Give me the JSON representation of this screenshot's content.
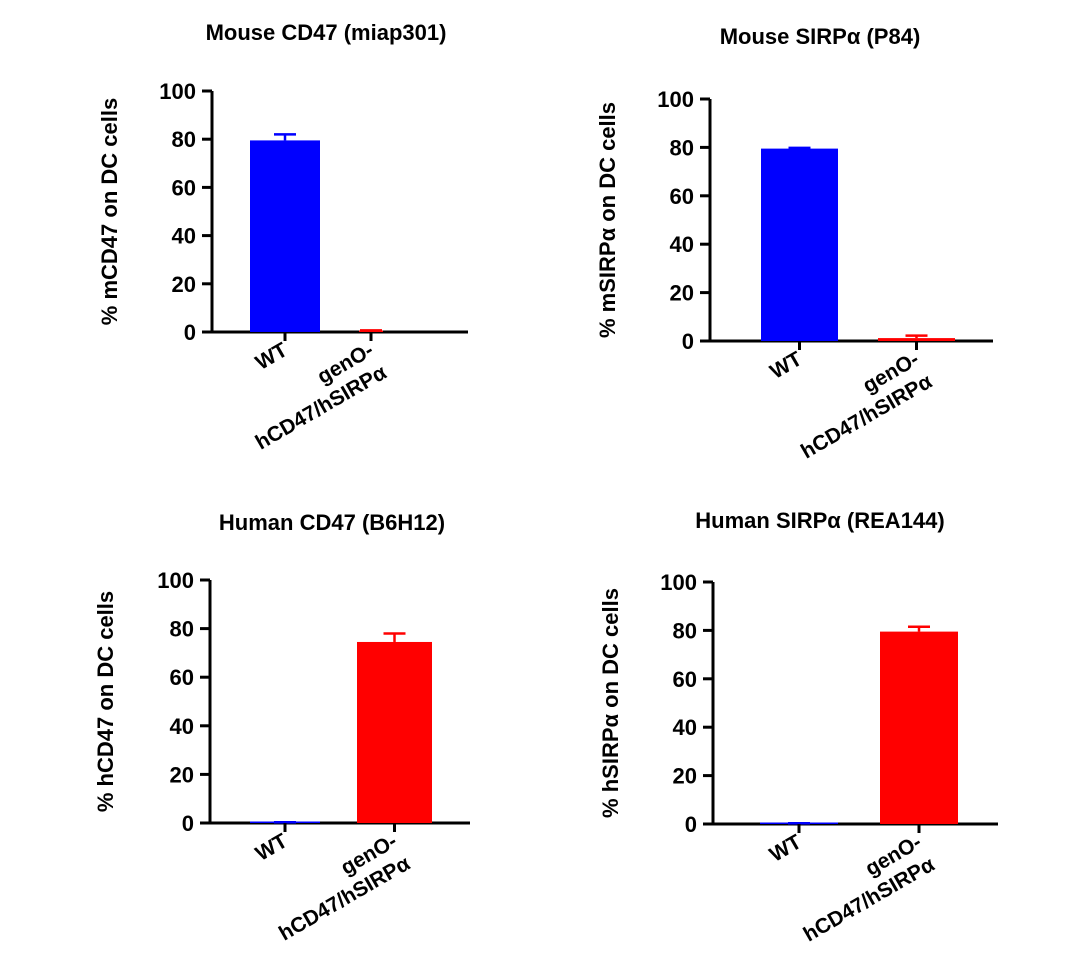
{
  "chart_data": [
    {
      "type": "bar",
      "title": "Mouse CD47 (miap301)",
      "ylabel": "% mCD47 on DC cells",
      "xlabel": "",
      "ylim": [
        0,
        100
      ],
      "yticks": [
        "0",
        "20",
        "40",
        "60",
        "80",
        "100"
      ],
      "categories": [
        [
          "WT"
        ],
        [
          "genO-",
          "hCD47/hSIRPα"
        ]
      ],
      "values": [
        79.5,
        0.4
      ],
      "errors": [
        2.5,
        0.3
      ],
      "colors": [
        "#0000ff",
        "#ff0000"
      ],
      "grid": false
    },
    {
      "type": "bar",
      "title": "Mouse SIRPα (P84)",
      "ylabel": "% mSIRPα on DC cells",
      "xlabel": "",
      "ylim": [
        0,
        100
      ],
      "yticks": [
        "0",
        "20",
        "40",
        "60",
        "80",
        "100"
      ],
      "categories": [
        [
          "WT"
        ],
        [
          "genO-",
          "hCD47/hSIRPα"
        ]
      ],
      "values": [
        79.5,
        1.2
      ],
      "errors": [
        0.3,
        1.0
      ],
      "colors": [
        "#0000ff",
        "#ff0000"
      ],
      "grid": false
    },
    {
      "type": "bar",
      "title": "Human CD47 (B6H12)",
      "ylabel": "% hCD47 on DC cells",
      "xlabel": "",
      "ylim": [
        0,
        100
      ],
      "yticks": [
        "0",
        "20",
        "40",
        "60",
        "80",
        "100"
      ],
      "categories": [
        [
          "WT"
        ],
        [
          "genO-",
          "hCD47/hSIRPα"
        ]
      ],
      "values": [
        0.2,
        74.5
      ],
      "errors": [
        0.1,
        3.5
      ],
      "colors": [
        "#0000ff",
        "#ff0000"
      ],
      "grid": false
    },
    {
      "type": "bar",
      "title": "Human SIRPα (REA144)",
      "ylabel": "% hSIRPα on DC cells",
      "xlabel": "",
      "ylim": [
        0,
        100
      ],
      "yticks": [
        "0",
        "20",
        "40",
        "60",
        "80",
        "100"
      ],
      "categories": [
        [
          "WT"
        ],
        [
          "genO-",
          "hCD47/hSIRPα"
        ]
      ],
      "values": [
        0.2,
        79.5
      ],
      "errors": [
        0.1,
        2.0
      ],
      "colors": [
        "#0000ff",
        "#ff0000"
      ],
      "grid": false
    }
  ]
}
